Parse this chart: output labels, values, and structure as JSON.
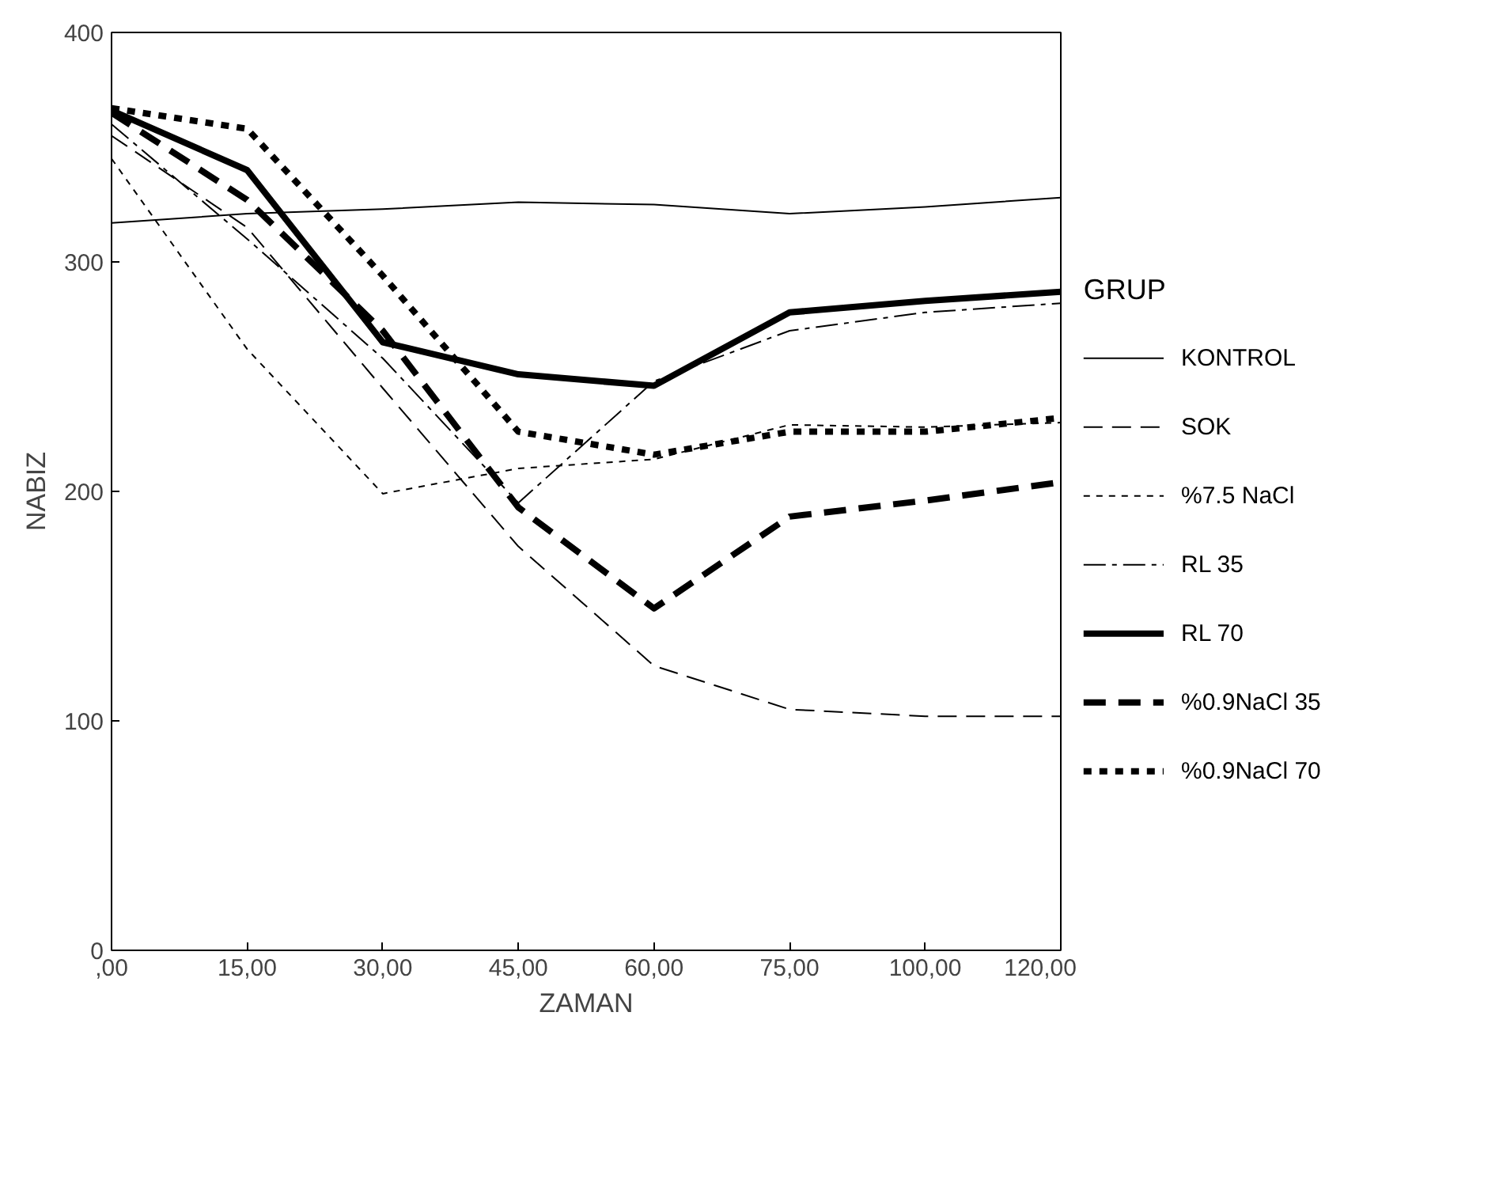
{
  "chart_data": {
    "type": "line",
    "xlabel": "ZAMAN",
    "ylabel": "NABIZ",
    "legend_title": "GRUP",
    "legend": "right",
    "grid": false,
    "categories": [
      ",00",
      "15,00",
      "30,00",
      "45,00",
      "60,00",
      "75,00",
      "100,00",
      "120,00"
    ],
    "ylim": [
      0,
      400
    ],
    "yticks": [
      0,
      100,
      200,
      300,
      400
    ],
    "series": [
      {
        "name": "KONTROL",
        "color": "#000000",
        "line_style": "solid",
        "values": [
          317,
          321,
          323,
          326,
          325,
          321,
          324,
          328
        ]
      },
      {
        "name": "SOK",
        "color": "#000000",
        "line_style": "dashed",
        "values": [
          355,
          315,
          245,
          176,
          124,
          105,
          102,
          102
        ]
      },
      {
        "name": "%7.5 NaCl",
        "color": "#000000",
        "line_style": "dotted",
        "values": [
          345,
          262,
          199,
          210,
          214,
          229,
          228,
          230
        ]
      },
      {
        "name": "RL 35",
        "color": "#000000",
        "line_style": "dashdot",
        "values": [
          360,
          310,
          258,
          195,
          248,
          270,
          278,
          282
        ]
      },
      {
        "name": "RL 70",
        "color": "#000000",
        "line_style": "solid",
        "values": [
          366,
          340,
          265,
          251,
          246,
          278,
          283,
          287
        ]
      },
      {
        "name": "%0.9NaCl 35",
        "color": "#000000",
        "line_style": "dashed",
        "values": [
          365,
          327,
          270,
          193,
          149,
          189,
          196,
          204
        ]
      },
      {
        "name": "%0.9NaCl 70",
        "color": "#000000",
        "line_style": "dotted",
        "values": [
          367,
          358,
          294,
          226,
          216,
          226,
          226,
          232
        ]
      }
    ]
  }
}
